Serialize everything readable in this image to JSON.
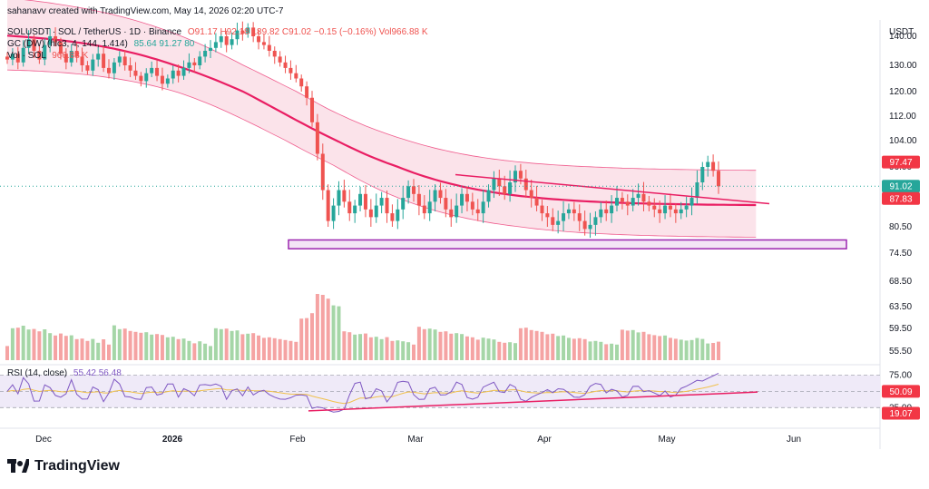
{
  "header": {
    "credit": "sahanavv created with TradingView.com, May 14, 2026 02:20 UTC-7",
    "symbol_line": "SOLUSDT · SOL / TetherUS · 1D · Binance",
    "ohlc": "O91.17 H92.18 L89.82 C91.02 −0.15 (−0.16%) Vol966.88 K",
    "indicator_line": "GC (DW) (hlc3, 4, 144, 1.414)",
    "indicator_values": "85.64 91.27 80",
    "vol_line": "Vol · SOL",
    "vol_value": "966.88 K",
    "rsi_label": "RSI (14, close)",
    "rsi_values": "55.42 56.48"
  },
  "price_axis": {
    "unit": "USDT",
    "ticks": [
      "140.00",
      "130.00",
      "120.00",
      "112.00",
      "104.00",
      "96.00",
      "80.50",
      "74.50",
      "68.50",
      "63.50",
      "59.50",
      "55.50"
    ]
  },
  "badges": {
    "upper": "97.47",
    "last": "91.02",
    "lower": "87.83",
    "rsi_upper": "50.09",
    "rsi_lower": "19.07"
  },
  "rsi_axis": {
    "ticks": [
      "75.00",
      "25.00"
    ]
  },
  "time_axis": {
    "ticks": [
      "Dec",
      "2026",
      "Feb",
      "Mar",
      "Apr",
      "May",
      "Jun"
    ]
  },
  "branding": {
    "name": "TradingView"
  },
  "colors": {
    "up": "#26a69a",
    "up_light": "#a5d6a7",
    "down": "#ef5350",
    "down_light": "#f5a3a3",
    "band": "#e91e63",
    "band_fill": "#fbe3ea",
    "support_box": "#9c27b0",
    "rsi_line": "#7e57c2",
    "rsi_ma": "#f0c14b",
    "rsi_bg": "#efeaf8",
    "badge_red": "#f23645",
    "badge_dark": "#ad1457"
  },
  "chart_data": {
    "type": "candlestick",
    "x_range": [
      "2025-11-20",
      "2026-05-14"
    ],
    "y_range": [
      52,
      146
    ],
    "closes": [
      132,
      134,
      131,
      136,
      139,
      135,
      132,
      137,
      140,
      138,
      134,
      131,
      135,
      133,
      130,
      128,
      132,
      134,
      129,
      127,
      131,
      133,
      130,
      128,
      126,
      124,
      127,
      129,
      126,
      123,
      125,
      128,
      126,
      129,
      131,
      130,
      133,
      135,
      136,
      138,
      140,
      137,
      139,
      142,
      141,
      143,
      140,
      138,
      137,
      135,
      133,
      131,
      129,
      127,
      125,
      122,
      118,
      110,
      100,
      90,
      82,
      86,
      90,
      87,
      84,
      86,
      89,
      85,
      83,
      86,
      88,
      84,
      82,
      85,
      88,
      91,
      89,
      86,
      84,
      87,
      90,
      88,
      85,
      83,
      86,
      89,
      87,
      85,
      84,
      87,
      90,
      93,
      91,
      89,
      92,
      95,
      93,
      90,
      88,
      86,
      84,
      83,
      81,
      82,
      84,
      85,
      84,
      82,
      80,
      81,
      83,
      85,
      84,
      86,
      88,
      87,
      86,
      88,
      89,
      87,
      86,
      85,
      84,
      86,
      85,
      84,
      85,
      86,
      88,
      92,
      96,
      97.5,
      95,
      91
    ],
    "price_lines": {
      "upper_band_now": 97.47,
      "last": 91.02,
      "mid_band_now": 87.83
    },
    "support_zone": [
      75.5,
      77.5
    ],
    "rsi": {
      "last": 55.42,
      "ma": 56.48,
      "upper": 75,
      "lower": 25
    }
  }
}
